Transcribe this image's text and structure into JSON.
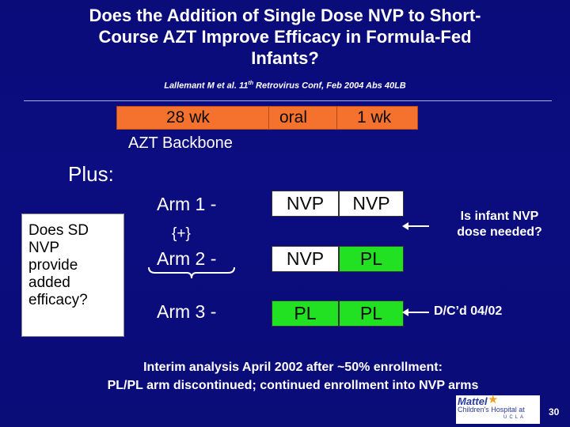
{
  "title": {
    "line1": "Does the Addition of Single Dose NVP to Short-",
    "line2": "Course AZT Improve Efficacy in Formula-Fed",
    "line3": "Infants?"
  },
  "citation": {
    "prefix": "Lallemant M et al. 11",
    "sup": "th",
    "suffix": " Retrovirus Conf, Feb 2004 Abs 40LB"
  },
  "backbone": {
    "seg1": "28 wk",
    "seg2": "oral",
    "seg3": "1 wk",
    "label": "AZT Backbone",
    "color": "#f4722e"
  },
  "plus_label": "Plus:",
  "question": {
    "lines": [
      "Does SD",
      "NVP",
      "provide",
      "added",
      "efficacy?"
    ]
  },
  "arms": [
    {
      "label": "Arm 1 -",
      "cells": [
        "NVP",
        "NVP"
      ]
    },
    {
      "label": "Arm 2 -",
      "cells": [
        "NVP",
        "PL"
      ]
    },
    {
      "label": "Arm 3 -",
      "cells": [
        "PL",
        "PL"
      ]
    }
  ],
  "plus_brace": "{+}",
  "annotations": {
    "infant_nvp_line1": "Is infant NVP",
    "infant_nvp_line2": "dose needed?",
    "dc": "D/C’d 04/02"
  },
  "interim": {
    "line1": "Interim analysis April 2002 after ~50% enrollment:",
    "line2": "PL/PL arm discontinued; continued enrollment into NVP arms"
  },
  "logo": {
    "line1": "Mattel",
    "line2": "Children's Hospital at",
    "line3": "UCLA"
  },
  "slide_number": "30",
  "colors": {
    "background": "#0a0c7a",
    "placebo": "#22e022",
    "nvp": "#ffffff"
  }
}
